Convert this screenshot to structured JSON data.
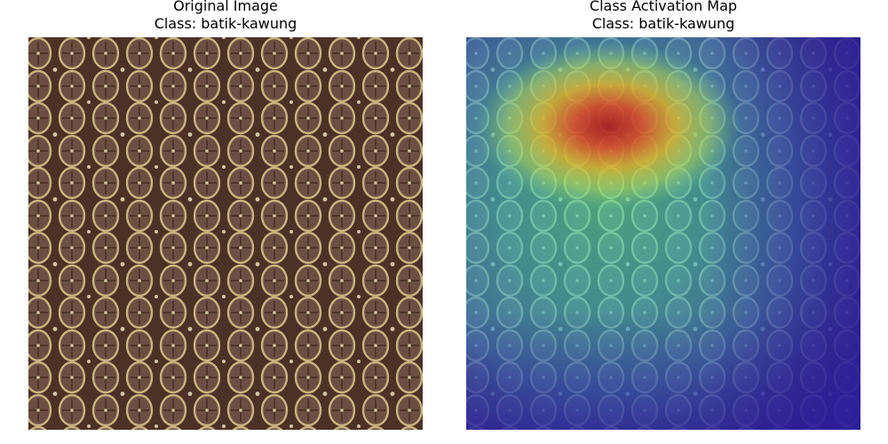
{
  "figure": {
    "left_panel": {
      "title_line1": "Original Image",
      "title_line2": "Class: batik-kawung"
    },
    "right_panel": {
      "title_line1": "Class Activation Map",
      "title_line2": "Class: batik-kawung"
    }
  },
  "pattern": {
    "background_color": "#4a3026",
    "dark_fill_color": "#3a241c",
    "ring_color": "#d8c48c",
    "inner_color": "#6e5246",
    "speck_color": "#e6d9b8"
  },
  "heatmap": {
    "colormap": "jet",
    "low_color": "#2a1d9c",
    "mid_color": "#3fbfb0",
    "high_color": "#c81e1e",
    "hotspot_region": "upper-center"
  }
}
